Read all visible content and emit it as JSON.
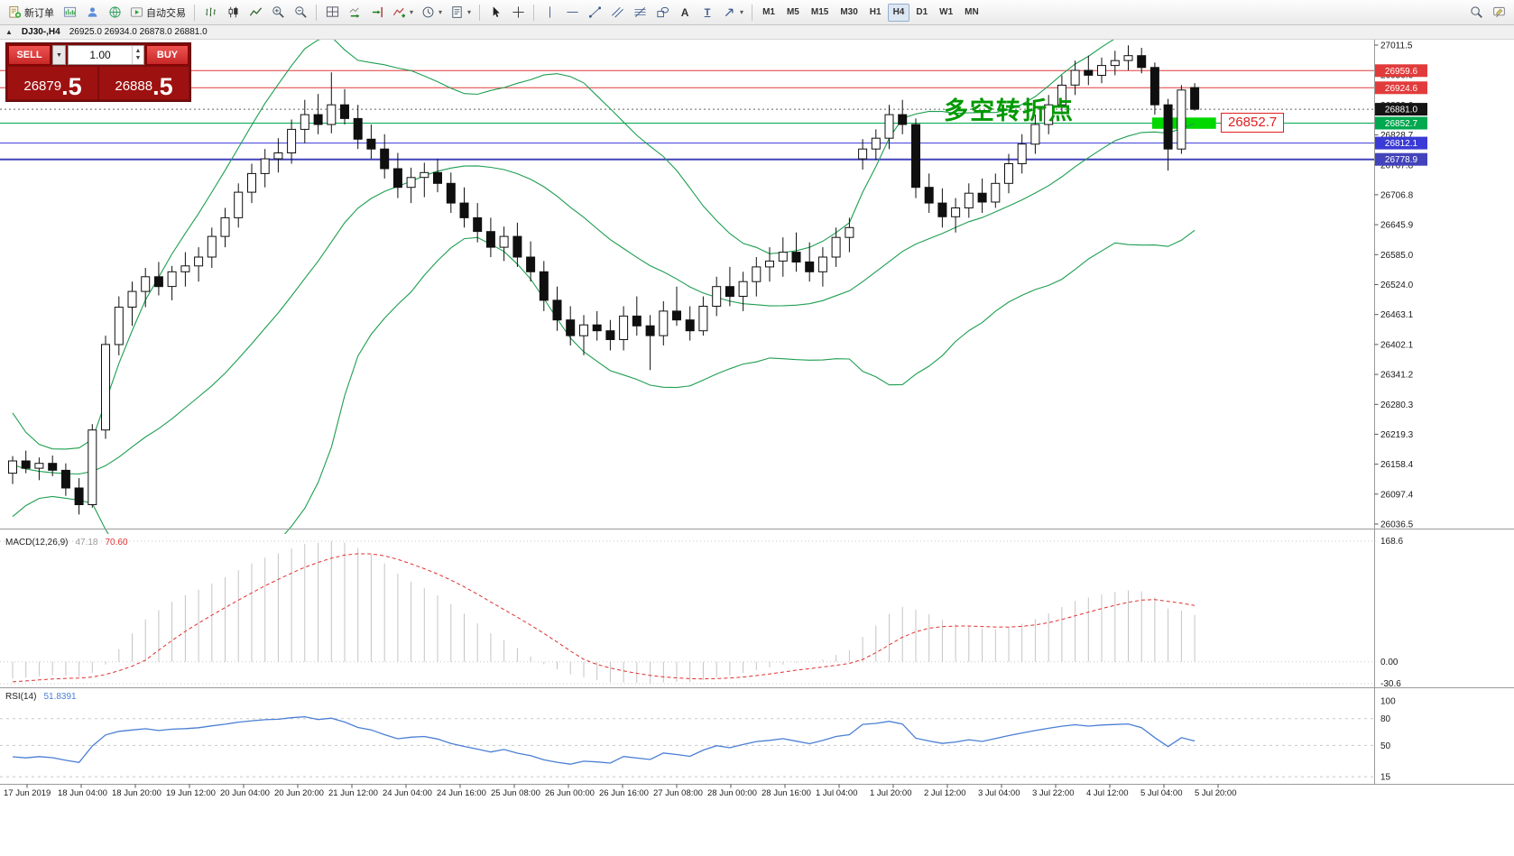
{
  "toolbar": {
    "new_order_label": "新订单",
    "autotrading_label": "自动交易",
    "timeframes": [
      "M1",
      "M5",
      "M15",
      "M30",
      "H1",
      "H4",
      "D1",
      "W1",
      "MN"
    ],
    "active_timeframe": "H4"
  },
  "chart_header": {
    "symbol": "DJ30-,H4",
    "ohlc": "26925.0 26934.0 26878.0 26881.0"
  },
  "trade_panel": {
    "sell_label": "SELL",
    "buy_label": "BUY",
    "volume": "1.00",
    "sell_price_int": "26879",
    "sell_price_frac": ".5",
    "buy_price_int": "26888",
    "buy_price_frac": ".5"
  },
  "annotation": "多空转折点",
  "callout_label": "26852.7",
  "chart_data": {
    "type": "candlestick",
    "symbol": "DJ30-",
    "timeframe": "H4",
    "y_axis": {
      "max": 27011.5,
      "min": 26036.5,
      "labels": [
        "27011.5",
        "26950.6",
        "26889.6",
        "26828.7",
        "26767.8",
        "26706.8",
        "26645.9",
        "26585.0",
        "26524.0",
        "26463.1",
        "26402.1",
        "26341.2",
        "26280.3",
        "26219.3",
        "26158.4",
        "26097.4",
        "26036.5"
      ]
    },
    "x_labels": [
      "17 Jun 2019",
      "18 Jun 04:00",
      "18 Jun 20:00",
      "19 Jun 12:00",
      "20 Jun 04:00",
      "20 Jun 20:00",
      "21 Jun 12:00",
      "24 Jun 04:00",
      "24 Jun 16:00",
      "25 Jun 08:00",
      "26 Jun 00:00",
      "26 Jun 16:00",
      "27 Jun 08:00",
      "28 Jun 00:00",
      "28 Jun 16:00",
      "1 Jul 04:00",
      "1 Jul 20:00",
      "2 Jul 12:00",
      "3 Jul 04:00",
      "3 Jul 22:00",
      "4 Jul 12:00",
      "5 Jul 04:00",
      "5 Jul 20:00"
    ],
    "candles": [
      [
        26140,
        26175,
        26118,
        26165
      ],
      [
        26165,
        26186,
        26140,
        26150
      ],
      [
        26150,
        26172,
        26126,
        26160
      ],
      [
        26160,
        26176,
        26134,
        26146
      ],
      [
        26146,
        26160,
        26094,
        26110
      ],
      [
        26110,
        26130,
        26056,
        26076
      ],
      [
        26076,
        26240,
        26070,
        26228
      ],
      [
        26228,
        26420,
        26210,
        26402
      ],
      [
        26402,
        26500,
        26380,
        26478
      ],
      [
        26478,
        26530,
        26440,
        26510
      ],
      [
        26510,
        26558,
        26478,
        26540
      ],
      [
        26540,
        26570,
        26502,
        26520
      ],
      [
        26520,
        26562,
        26492,
        26550
      ],
      [
        26550,
        26590,
        26520,
        26562
      ],
      [
        26562,
        26600,
        26530,
        26580
      ],
      [
        26580,
        26640,
        26558,
        26622
      ],
      [
        26622,
        26680,
        26600,
        26660
      ],
      [
        26660,
        26730,
        26640,
        26712
      ],
      [
        26712,
        26770,
        26690,
        26750
      ],
      [
        26750,
        26800,
        26722,
        26780
      ],
      [
        26780,
        26822,
        26752,
        26792
      ],
      [
        26792,
        26860,
        26770,
        26840
      ],
      [
        26840,
        26900,
        26812,
        26870
      ],
      [
        26870,
        26912,
        26830,
        26850
      ],
      [
        26850,
        26956,
        26832,
        26890
      ],
      [
        26890,
        26922,
        26850,
        26862
      ],
      [
        26862,
        26890,
        26800,
        26820
      ],
      [
        26820,
        26850,
        26780,
        26800
      ],
      [
        26800,
        26830,
        26740,
        26760
      ],
      [
        26760,
        26792,
        26700,
        26722
      ],
      [
        26722,
        26762,
        26690,
        26742
      ],
      [
        26742,
        26772,
        26702,
        26752
      ],
      [
        26752,
        26780,
        26712,
        26730
      ],
      [
        26730,
        26752,
        26670,
        26690
      ],
      [
        26690,
        26722,
        26640,
        26660
      ],
      [
        26660,
        26690,
        26610,
        26632
      ],
      [
        26632,
        26660,
        26580,
        26600
      ],
      [
        26600,
        26642,
        26572,
        26622
      ],
      [
        26622,
        26650,
        26560,
        26580
      ],
      [
        26580,
        26612,
        26530,
        26550
      ],
      [
        26550,
        26572,
        26470,
        26492
      ],
      [
        26492,
        26520,
        26430,
        26452
      ],
      [
        26452,
        26480,
        26400,
        26420
      ],
      [
        26420,
        26462,
        26380,
        26442
      ],
      [
        26442,
        26470,
        26410,
        26430
      ],
      [
        26430,
        26452,
        26390,
        26412
      ],
      [
        26412,
        26480,
        26390,
        26460
      ],
      [
        26460,
        26500,
        26420,
        26440
      ],
      [
        26440,
        26462,
        26350,
        26420
      ],
      [
        26420,
        26490,
        26400,
        26470
      ],
      [
        26470,
        26520,
        26440,
        26452
      ],
      [
        26452,
        26480,
        26410,
        26430
      ],
      [
        26430,
        26500,
        26420,
        26480
      ],
      [
        26480,
        26540,
        26460,
        26520
      ],
      [
        26520,
        26560,
        26480,
        26500
      ],
      [
        26500,
        26550,
        26470,
        26530
      ],
      [
        26530,
        26580,
        26500,
        26560
      ],
      [
        26560,
        26600,
        26530,
        26572
      ],
      [
        26572,
        26620,
        26540,
        26590
      ],
      [
        26590,
        26630,
        26550,
        26570
      ],
      [
        26570,
        26610,
        26530,
        26550
      ],
      [
        26550,
        26600,
        26520,
        26580
      ],
      [
        26580,
        26640,
        26560,
        26620
      ],
      [
        26620,
        26660,
        26590,
        26640
      ],
      [
        26780,
        26820,
        26758,
        26800
      ],
      [
        26800,
        26840,
        26778,
        26822
      ],
      [
        26822,
        26890,
        26800,
        26870
      ],
      [
        26870,
        26900,
        26830,
        26850
      ],
      [
        26850,
        26862,
        26700,
        26722
      ],
      [
        26722,
        26750,
        26670,
        26690
      ],
      [
        26690,
        26720,
        26640,
        26662
      ],
      [
        26662,
        26700,
        26630,
        26680
      ],
      [
        26680,
        26730,
        26660,
        26710
      ],
      [
        26710,
        26740,
        26670,
        26692
      ],
      [
        26692,
        26750,
        26680,
        26730
      ],
      [
        26730,
        26790,
        26710,
        26770
      ],
      [
        26770,
        26830,
        26750,
        26810
      ],
      [
        26810,
        26870,
        26790,
        26850
      ],
      [
        26850,
        26910,
        26830,
        26890
      ],
      [
        26890,
        26950,
        26870,
        26930
      ],
      [
        26930,
        26980,
        26910,
        26960
      ],
      [
        26960,
        26990,
        26930,
        26950
      ],
      [
        26950,
        26986,
        26934,
        26970
      ],
      [
        26970,
        27000,
        26950,
        26980
      ],
      [
        26980,
        27011,
        26960,
        26990
      ],
      [
        26990,
        27006,
        26954,
        26966
      ],
      [
        26966,
        26976,
        26870,
        26890
      ],
      [
        26890,
        26902,
        26756,
        26800
      ],
      [
        26800,
        26930,
        26790,
        26920
      ],
      [
        26925,
        26934,
        26878,
        26881
      ]
    ],
    "warmup_closes": [
      26380,
      26320,
      26260,
      26200,
      26150,
      26090,
      26120,
      26170,
      26130,
      26090,
      26140,
      26180,
      26150,
      26110,
      26140,
      26170,
      26150,
      26120,
      26140,
      26150
    ],
    "bollinger": {
      "period": 20,
      "deviation": 2,
      "color": "#1e9e50"
    },
    "hlines": [
      {
        "price": 26959.6,
        "label": "26959.6",
        "color": "#e23b3b",
        "width": 1
      },
      {
        "price": 26924.6,
        "label": "26924.6",
        "color": "#e23b3b",
        "width": 1
      },
      {
        "price": 26852.7,
        "label": "26852.7",
        "color": "#00a84f",
        "width": 1
      },
      {
        "price": 26812.1,
        "label": "26812.1",
        "color": "#3a3ad6",
        "width": 1
      },
      {
        "price": 26778.9,
        "label": "26778.9",
        "color": "#4343bb",
        "width": 2
      }
    ],
    "bid_line": {
      "price": 26881.0,
      "label": "26881.0",
      "box_color": "#141414"
    },
    "highlight_rect": {
      "from_bar": 85.8,
      "to_bar": 90.6,
      "price_top": 26864,
      "price_bottom": 26841,
      "color": "#00d800"
    },
    "macd": {
      "name": "MACD(12,26,9)",
      "main_value": "47.18",
      "signal_value": "70.60",
      "scale_max": 168.6,
      "scale_min": -30.6,
      "scale_labels": [
        "168.6",
        "0.00",
        "-30.6"
      ],
      "histogram_color": "#c4c4c4",
      "signal_color": "#e03030"
    },
    "rsi": {
      "name": "RSI(14)",
      "value": "51.8391",
      "levels": [
        80,
        50,
        15
      ],
      "scale_values": [
        100,
        80,
        50,
        15
      ],
      "scale_labels": [
        "100",
        "80",
        "50",
        "15"
      ],
      "line_color": "#4a7fd4",
      "ylim": [
        10,
        105
      ]
    }
  }
}
